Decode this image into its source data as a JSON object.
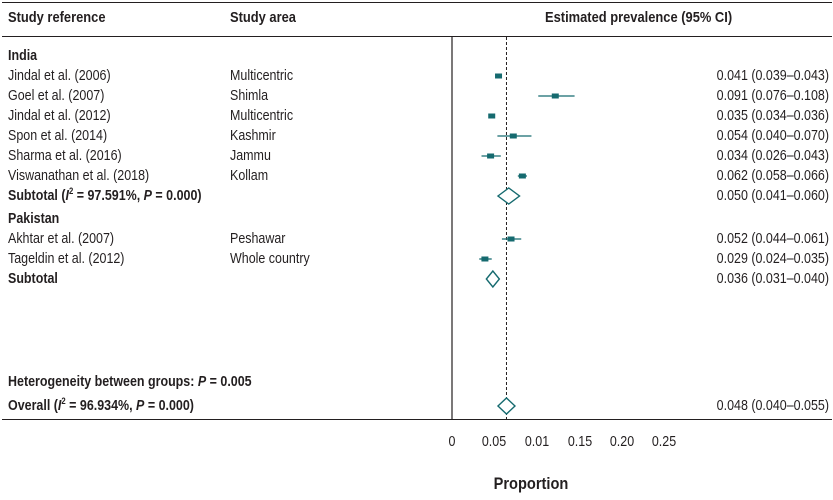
{
  "chart_data": {
    "type": "forest",
    "headers": {
      "reference": "Study reference",
      "area": "Study area",
      "estimate": "Estimated prevalence (95% CI)"
    },
    "groups": [
      {
        "name": "India",
        "studies": [
          {
            "reference": "Jindal et al. (2006)",
            "area": "Multicentric",
            "est": 0.041,
            "lo": 0.039,
            "hi": 0.043,
            "label": "0.041 (0.039–0.043)"
          },
          {
            "reference": "Goel et al. (2007)",
            "area": "Shimla",
            "est": 0.091,
            "lo": 0.076,
            "hi": 0.108,
            "label": "0.091 (0.076–0.108)"
          },
          {
            "reference": "Jindal et al. (2012)",
            "area": "Multicentric",
            "est": 0.035,
            "lo": 0.034,
            "hi": 0.036,
            "label": "0.035 (0.034–0.036)"
          },
          {
            "reference": "Spon et al. (2014)",
            "area": "Kashmir",
            "est": 0.054,
            "lo": 0.04,
            "hi": 0.07,
            "label": "0.054 (0.040–0.070)"
          },
          {
            "reference": "Sharma et al. (2016)",
            "area": "Jammu",
            "est": 0.034,
            "lo": 0.026,
            "hi": 0.043,
            "label": "0.034 (0.026–0.043)"
          },
          {
            "reference": "Viswanathan et al. (2018)",
            "area": "Kollam",
            "est": 0.062,
            "lo": 0.058,
            "hi": 0.066,
            "label": "0.062 (0.058–0.066)"
          }
        ],
        "subtotal": {
          "prefix": "Subtotal (",
          "i2": "I",
          "i2_sup": "2",
          "i2_value": " = 97.591%, ",
          "p": "P",
          "p_value": " = 0.000)",
          "est": 0.05,
          "lo": 0.041,
          "hi": 0.06,
          "label": "0.050 (0.041–0.060)"
        }
      },
      {
        "name": "Pakistan",
        "studies": [
          {
            "reference": "Akhtar et al. (2007)",
            "area": "Peshawar",
            "est": 0.052,
            "lo": 0.044,
            "hi": 0.061,
            "label": "0.052 (0.044–0.061)"
          },
          {
            "reference": "Tageldin et al. (2012)",
            "area": "Whole country",
            "est": 0.029,
            "lo": 0.024,
            "hi": 0.035,
            "label": "0.029 (0.024–0.035)"
          }
        ],
        "subtotal": {
          "prefix": "Subtotal",
          "est": 0.036,
          "lo": 0.031,
          "hi": 0.04,
          "label": "0.036 (0.031–0.040)"
        }
      }
    ],
    "heterogeneity": {
      "prefix": "Heterogeneity between groups: ",
      "p": "P",
      "p_value": " = 0.005"
    },
    "overall": {
      "prefix": "Overall (",
      "i2": "I",
      "i2_sup": "2",
      "i2_value": " = 96.934%, ",
      "p": "P",
      "p_value": " = 0.000)",
      "est": 0.048,
      "lo": 0.04,
      "hi": 0.055,
      "label": "0.048 (0.040–0.055)"
    },
    "x_axis": {
      "ticks": [
        "0",
        "0.05",
        "0.01",
        "0.15",
        "0.20",
        "0.25"
      ],
      "label": "Proportion"
    },
    "reference_line": 0.048,
    "colors": {
      "marker": "#156a6f",
      "text": "#231f20"
    }
  }
}
